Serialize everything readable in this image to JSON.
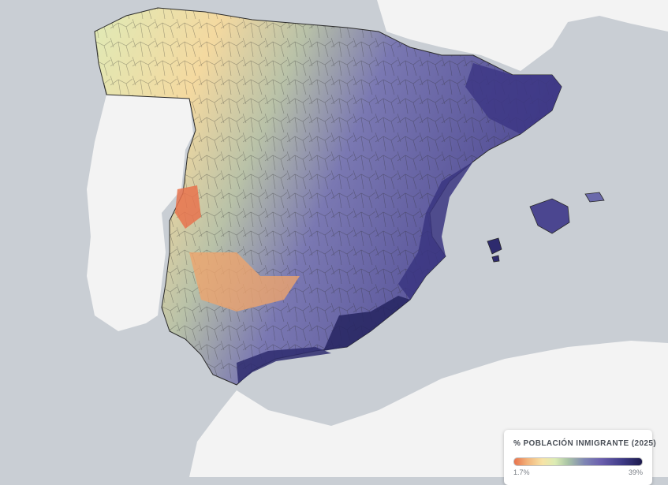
{
  "map": {
    "type": "choropleth",
    "region": "Spain (peninsula and Balearic Islands), comarcas",
    "colors": {
      "sea": "#c9ced4",
      "land": "#f3f3f3",
      "low": "#e8734d",
      "mid_low": "#f7e3a6",
      "mid": "#a9c4a6",
      "mid_high": "#6b5fae",
      "high": "#1c1a4c",
      "border": "#2a2a2a"
    }
  },
  "legend": {
    "title": "% POBLACIÓN INMIGRANTE (2025)",
    "min_label": "1.7%",
    "max_label": "39%"
  }
}
